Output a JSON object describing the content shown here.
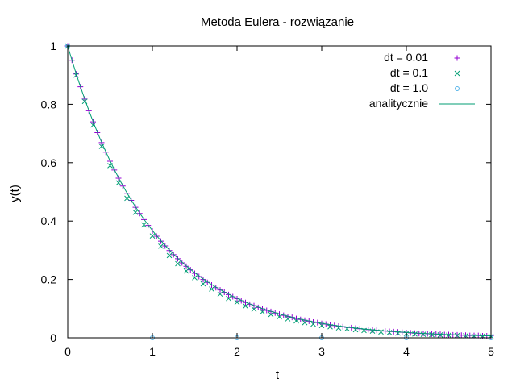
{
  "chart_data": {
    "type": "scatter",
    "title": "Metoda Eulera - rozwiązanie",
    "xlabel": "t",
    "ylabel": "y(t)",
    "xlim": [
      0,
      5
    ],
    "ylim": [
      0,
      1
    ],
    "x_ticks": [
      "0",
      "1",
      "2",
      "3",
      "4",
      "5"
    ],
    "y_ticks": [
      "0",
      "0.2",
      "0.4",
      "0.6",
      "0.8",
      "1"
    ],
    "grid": false,
    "legend_position": "top-right",
    "series": [
      {
        "name": "dt = 0.01",
        "marker": "plus",
        "color": "#9400d3",
        "x": [
          0.0,
          0.05,
          0.1,
          0.15,
          0.2,
          0.25,
          0.3,
          0.35,
          0.4,
          0.45,
          0.5,
          0.55,
          0.6,
          0.65,
          0.7,
          0.75,
          0.8,
          0.85,
          0.9,
          0.95,
          1.0,
          1.05,
          1.1,
          1.15,
          1.2,
          1.25,
          1.3,
          1.35,
          1.4,
          1.45,
          1.5,
          1.55,
          1.6,
          1.65,
          1.7,
          1.75,
          1.8,
          1.85,
          1.9,
          1.95,
          2.0,
          2.05,
          2.1,
          2.15,
          2.2,
          2.25,
          2.3,
          2.35,
          2.4,
          2.45,
          2.5,
          2.55,
          2.6,
          2.65,
          2.7,
          2.75,
          2.8,
          2.85,
          2.9,
          2.95,
          3.0,
          3.05,
          3.1,
          3.15,
          3.2,
          3.25,
          3.3,
          3.35,
          3.4,
          3.45,
          3.5,
          3.55,
          3.6,
          3.65,
          3.7,
          3.75,
          3.8,
          3.85,
          3.9,
          3.95,
          4.0,
          4.05,
          4.1,
          4.15,
          4.2,
          4.25,
          4.3,
          4.35,
          4.4,
          4.45,
          4.5,
          4.55,
          4.6,
          4.65,
          4.7,
          4.75,
          4.8,
          4.85,
          4.9,
          4.95,
          5.0
        ],
        "y": [
          1.0,
          0.951,
          0.904,
          0.86,
          0.818,
          0.778,
          0.74,
          0.703,
          0.669,
          0.636,
          0.605,
          0.575,
          0.547,
          0.52,
          0.495,
          0.471,
          0.447,
          0.426,
          0.405,
          0.385,
          0.366,
          0.348,
          0.331,
          0.315,
          0.299,
          0.285,
          0.271,
          0.257,
          0.245,
          0.233,
          0.221,
          0.21,
          0.2,
          0.19,
          0.181,
          0.172,
          0.164,
          0.156,
          0.148,
          0.141,
          0.134,
          0.127,
          0.121,
          0.115,
          0.11,
          0.104,
          0.099,
          0.094,
          0.09,
          0.085,
          0.081,
          0.077,
          0.073,
          0.07,
          0.066,
          0.063,
          0.06,
          0.057,
          0.054,
          0.052,
          0.049,
          0.047,
          0.044,
          0.042,
          0.04,
          0.038,
          0.036,
          0.035,
          0.033,
          0.031,
          0.03,
          0.028,
          0.027,
          0.026,
          0.024,
          0.023,
          0.022,
          0.021,
          0.02,
          0.019,
          0.018,
          0.017,
          0.016,
          0.015,
          0.015,
          0.014,
          0.013,
          0.013,
          0.012,
          0.011,
          0.011,
          0.01,
          0.01,
          0.009,
          0.009,
          0.008,
          0.008,
          0.008,
          0.007,
          0.007,
          0.007
        ]
      },
      {
        "name": "dt = 0.1",
        "marker": "cross",
        "color": "#009e73",
        "x": [
          0.0,
          0.1,
          0.2,
          0.3,
          0.4,
          0.5,
          0.6,
          0.7,
          0.8,
          0.9,
          1.0,
          1.1,
          1.2,
          1.3,
          1.4,
          1.5,
          1.6,
          1.7,
          1.8,
          1.9,
          2.0,
          2.1,
          2.2,
          2.3,
          2.4,
          2.5,
          2.6,
          2.7,
          2.8,
          2.9,
          3.0,
          3.1,
          3.2,
          3.3,
          3.4,
          3.5,
          3.6,
          3.7,
          3.8,
          3.9,
          4.0,
          4.1,
          4.2,
          4.3,
          4.4,
          4.5,
          4.6,
          4.7,
          4.8,
          4.9,
          5.0
        ],
        "y": [
          1.0,
          0.9,
          0.81,
          0.729,
          0.656,
          0.59,
          0.531,
          0.478,
          0.43,
          0.387,
          0.349,
          0.314,
          0.282,
          0.254,
          0.229,
          0.206,
          0.185,
          0.167,
          0.15,
          0.135,
          0.122,
          0.109,
          0.098,
          0.089,
          0.08,
          0.072,
          0.065,
          0.058,
          0.052,
          0.047,
          0.042,
          0.038,
          0.034,
          0.031,
          0.028,
          0.025,
          0.023,
          0.02,
          0.018,
          0.016,
          0.015,
          0.013,
          0.012,
          0.011,
          0.01,
          0.009,
          0.008,
          0.007,
          0.006,
          0.006,
          0.005
        ]
      },
      {
        "name": "dt = 1.0",
        "marker": "circle",
        "color": "#56b4e9",
        "x": [
          0,
          1,
          2,
          3,
          4,
          5
        ],
        "y": [
          1,
          0,
          0,
          0,
          0,
          0
        ]
      },
      {
        "name": "analitycznie",
        "marker": "line",
        "color": "#009e73",
        "function": "exp(-t)",
        "x": [
          0.0,
          0.25,
          0.5,
          0.75,
          1.0,
          1.25,
          1.5,
          1.75,
          2.0,
          2.25,
          2.5,
          2.75,
          3.0,
          3.25,
          3.5,
          3.75,
          4.0,
          4.25,
          4.5,
          4.75,
          5.0
        ],
        "y": [
          1.0,
          0.779,
          0.607,
          0.472,
          0.368,
          0.287,
          0.223,
          0.174,
          0.135,
          0.105,
          0.082,
          0.064,
          0.05,
          0.039,
          0.03,
          0.024,
          0.018,
          0.014,
          0.011,
          0.009,
          0.007
        ]
      }
    ]
  }
}
